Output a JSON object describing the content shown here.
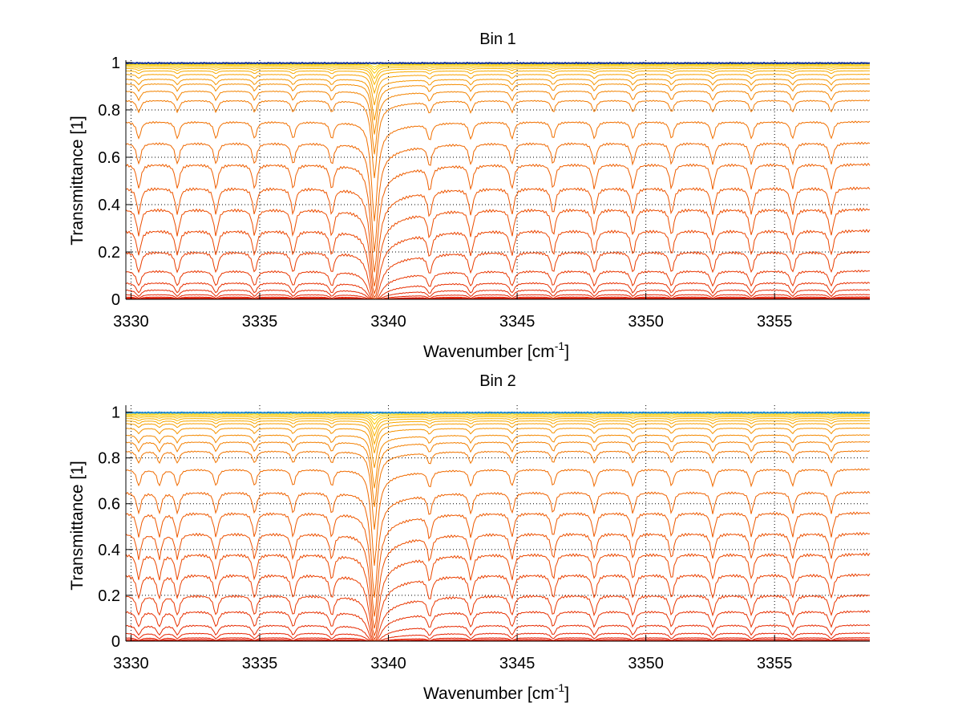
{
  "chart_data": [
    {
      "type": "line",
      "title": "Bin 1",
      "xlabel": "Wavenumber [cm",
      "xlabel_sup": "-1",
      "xlabel_end": "]",
      "ylabel": "Transmittance [1]",
      "xlim": [
        3329.8,
        3358.7
      ],
      "ylim": [
        0,
        1.01
      ],
      "xticks": [
        3330,
        3335,
        3340,
        3345,
        3350,
        3355
      ],
      "yticks": [
        0,
        0.2,
        0.4,
        0.6,
        0.8,
        1
      ],
      "ytick_labels": [
        "0",
        "0.2",
        "0.4",
        "0.6",
        "0.8",
        "1"
      ],
      "grid": true,
      "absorption_lines": [
        3330.3,
        3331.8,
        3333.3,
        3334.8,
        3336.3,
        3337.8,
        3341.6,
        3343.2,
        3344.8,
        3346.4,
        3348.0,
        3349.5,
        3351.0,
        3352.6,
        3354.1,
        3355.7,
        3357.2
      ],
      "strong_line": 3339.45,
      "series_baselines": [
        0.003,
        0.006,
        0.01,
        0.02,
        0.04,
        0.07,
        0.12,
        0.2,
        0.29,
        0.38,
        0.47,
        0.57,
        0.66,
        0.75,
        0.84,
        0.88,
        0.91,
        0.93,
        0.95,
        0.965,
        0.975,
        0.982,
        0.988,
        0.992,
        0.995,
        0.998
      ],
      "top_series_color": "#1030a0"
    },
    {
      "type": "line",
      "title": "Bin 2",
      "xlabel": "Wavenumber [cm",
      "xlabel_sup": "-1",
      "xlabel_end": "]",
      "ylabel": "Transmittance [1]",
      "xlim": [
        3329.8,
        3358.7
      ],
      "ylim": [
        0,
        1.03
      ],
      "xticks": [
        3330,
        3335,
        3340,
        3345,
        3350,
        3355
      ],
      "yticks": [
        0,
        0.2,
        0.4,
        0.6,
        0.8,
        1
      ],
      "ytick_labels": [
        "0",
        "0.2",
        "0.4",
        "0.6",
        "0.8",
        "1"
      ],
      "grid": true,
      "absorption_lines": [
        3330.3,
        3331.1,
        3331.8,
        3333.3,
        3334.8,
        3336.3,
        3337.8,
        3341.6,
        3343.2,
        3344.8,
        3346.4,
        3348.0,
        3349.5,
        3351.0,
        3352.6,
        3354.1,
        3355.7,
        3357.2
      ],
      "strong_line": 3339.45,
      "series_baselines": [
        0.003,
        0.008,
        0.015,
        0.035,
        0.07,
        0.13,
        0.2,
        0.29,
        0.38,
        0.47,
        0.56,
        0.65,
        0.75,
        0.83,
        0.87,
        0.9,
        0.93,
        0.95,
        0.962,
        0.972,
        0.98,
        0.986,
        0.991,
        0.995,
        0.998
      ],
      "top_series_color": "#1a8ad8"
    }
  ]
}
